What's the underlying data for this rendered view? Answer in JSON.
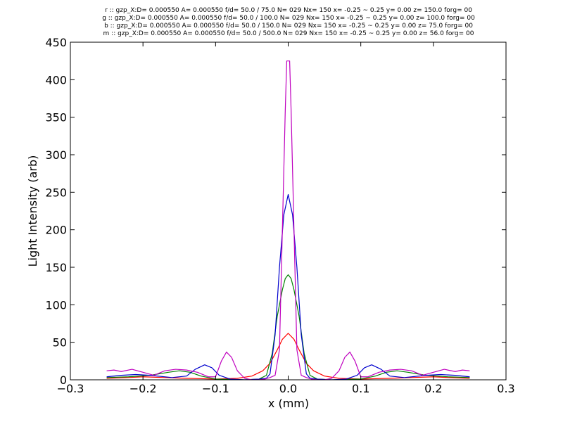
{
  "chart_data": {
    "type": "line",
    "title_lines": [
      "r :: gzp_X:D= 0.000550 A= 0.000550 f/d= 50.0 / 75.0 N= 029 Nx= 150 x= -0.25 ~ 0.25 y= 0.00 z= 150.0 forg= 00",
      "g :: gzp_X:D= 0.000550 A= 0.000550 f/d= 50.0 / 100.0 N= 029 Nx= 150 x= -0.25 ~ 0.25 y= 0.00 z= 100.0 forg= 00",
      "b :: gzp_X:D= 0.000550 A= 0.000550 f/d= 50.0 / 150.0 N= 029 Nx= 150 x= -0.25 ~ 0.25 y= 0.00 z= 75.0 forg= 00",
      "m :: gzp_X:D= 0.000550 A= 0.000550 f/d= 50.0 / 500.0 N= 029 Nx= 150 x= -0.25 ~ 0.25 y= 0.00 z= 56.0 forg= 00"
    ],
    "xlabel": "x (mm)",
    "ylabel": "Light Intensity (arb)",
    "xlim": [
      -0.3,
      0.3
    ],
    "ylim": [
      0,
      450
    ],
    "xticks": [
      -0.3,
      -0.2,
      -0.1,
      0.0,
      0.1,
      0.2,
      0.3
    ],
    "xtick_labels": [
      "−0.3",
      "−0.2",
      "−0.1",
      "0.0",
      "0.1",
      "0.2",
      "0.3"
    ],
    "yticks": [
      0,
      50,
      100,
      150,
      200,
      250,
      300,
      350,
      400,
      450
    ],
    "ytick_labels": [
      "0",
      "50",
      "100",
      "150",
      "200",
      "250",
      "300",
      "350",
      "400",
      "450"
    ],
    "grid": false,
    "series": [
      {
        "color": "#ff0000",
        "points": [
          [
            -0.25,
            2
          ],
          [
            -0.22,
            3
          ],
          [
            -0.2,
            4
          ],
          [
            -0.17,
            3
          ],
          [
            -0.14,
            2
          ],
          [
            -0.1,
            1
          ],
          [
            -0.07,
            2
          ],
          [
            -0.05,
            5
          ],
          [
            -0.035,
            12
          ],
          [
            -0.025,
            22
          ],
          [
            -0.015,
            40
          ],
          [
            -0.008,
            54
          ],
          [
            0,
            62
          ],
          [
            0.008,
            54
          ],
          [
            0.015,
            40
          ],
          [
            0.025,
            22
          ],
          [
            0.035,
            12
          ],
          [
            0.05,
            5
          ],
          [
            0.07,
            2
          ],
          [
            0.1,
            1
          ],
          [
            0.14,
            2
          ],
          [
            0.17,
            3
          ],
          [
            0.2,
            4
          ],
          [
            0.22,
            3
          ],
          [
            0.25,
            2
          ]
        ]
      },
      {
        "color": "#008000",
        "points": [
          [
            -0.25,
            3
          ],
          [
            -0.22,
            4
          ],
          [
            -0.19,
            6
          ],
          [
            -0.165,
            10
          ],
          [
            -0.15,
            12
          ],
          [
            -0.135,
            10
          ],
          [
            -0.12,
            5
          ],
          [
            -0.1,
            1
          ],
          [
            -0.06,
            0
          ],
          [
            -0.04,
            1
          ],
          [
            -0.03,
            6
          ],
          [
            -0.022,
            35
          ],
          [
            -0.015,
            85
          ],
          [
            -0.008,
            120
          ],
          [
            -0.004,
            135
          ],
          [
            0,
            140
          ],
          [
            0.004,
            135
          ],
          [
            0.008,
            120
          ],
          [
            0.015,
            85
          ],
          [
            0.022,
            35
          ],
          [
            0.03,
            6
          ],
          [
            0.04,
            1
          ],
          [
            0.06,
            0
          ],
          [
            0.1,
            1
          ],
          [
            0.12,
            5
          ],
          [
            0.135,
            10
          ],
          [
            0.15,
            12
          ],
          [
            0.165,
            10
          ],
          [
            0.19,
            6
          ],
          [
            0.22,
            4
          ],
          [
            0.25,
            3
          ]
        ]
      },
      {
        "color": "#0000cd",
        "points": [
          [
            -0.25,
            4
          ],
          [
            -0.23,
            6
          ],
          [
            -0.21,
            7
          ],
          [
            -0.19,
            6
          ],
          [
            -0.16,
            3
          ],
          [
            -0.14,
            5
          ],
          [
            -0.128,
            14
          ],
          [
            -0.115,
            20
          ],
          [
            -0.105,
            16
          ],
          [
            -0.095,
            6
          ],
          [
            -0.08,
            1
          ],
          [
            -0.06,
            0
          ],
          [
            -0.04,
            1
          ],
          [
            -0.03,
            2
          ],
          [
            -0.025,
            8
          ],
          [
            -0.018,
            60
          ],
          [
            -0.012,
            150
          ],
          [
            -0.006,
            220
          ],
          [
            0,
            247
          ],
          [
            0.006,
            220
          ],
          [
            0.012,
            150
          ],
          [
            0.018,
            60
          ],
          [
            0.025,
            8
          ],
          [
            0.03,
            2
          ],
          [
            0.04,
            1
          ],
          [
            0.06,
            0
          ],
          [
            0.08,
            1
          ],
          [
            0.095,
            6
          ],
          [
            0.105,
            16
          ],
          [
            0.115,
            20
          ],
          [
            0.128,
            14
          ],
          [
            0.14,
            5
          ],
          [
            0.16,
            3
          ],
          [
            0.19,
            6
          ],
          [
            0.21,
            7
          ],
          [
            0.23,
            6
          ],
          [
            0.25,
            4
          ]
        ]
      },
      {
        "color": "#bf00bf",
        "points": [
          [
            -0.25,
            12
          ],
          [
            -0.24,
            13
          ],
          [
            -0.23,
            11
          ],
          [
            -0.215,
            14
          ],
          [
            -0.2,
            10
          ],
          [
            -0.185,
            6
          ],
          [
            -0.17,
            12
          ],
          [
            -0.155,
            14
          ],
          [
            -0.14,
            13
          ],
          [
            -0.125,
            10
          ],
          [
            -0.11,
            4
          ],
          [
            -0.1,
            4
          ],
          [
            -0.092,
            25
          ],
          [
            -0.085,
            37
          ],
          [
            -0.078,
            30
          ],
          [
            -0.07,
            12
          ],
          [
            -0.06,
            2
          ],
          [
            -0.05,
            0
          ],
          [
            -0.04,
            0
          ],
          [
            -0.032,
            1
          ],
          [
            -0.025,
            3
          ],
          [
            -0.018,
            6
          ],
          [
            -0.012,
            40
          ],
          [
            -0.008,
            200
          ],
          [
            -0.004,
            360
          ],
          [
            -0.002,
            425
          ],
          [
            0.002,
            425
          ],
          [
            0.004,
            360
          ],
          [
            0.008,
            200
          ],
          [
            0.012,
            40
          ],
          [
            0.018,
            6
          ],
          [
            0.025,
            3
          ],
          [
            0.032,
            1
          ],
          [
            0.04,
            0
          ],
          [
            0.05,
            0
          ],
          [
            0.06,
            2
          ],
          [
            0.07,
            12
          ],
          [
            0.078,
            30
          ],
          [
            0.085,
            37
          ],
          [
            0.092,
            25
          ],
          [
            0.1,
            4
          ],
          [
            0.11,
            4
          ],
          [
            0.125,
            10
          ],
          [
            0.14,
            13
          ],
          [
            0.155,
            14
          ],
          [
            0.17,
            12
          ],
          [
            0.185,
            6
          ],
          [
            0.2,
            10
          ],
          [
            0.215,
            14
          ],
          [
            0.23,
            11
          ],
          [
            0.24,
            13
          ],
          [
            0.25,
            12
          ]
        ]
      }
    ]
  }
}
